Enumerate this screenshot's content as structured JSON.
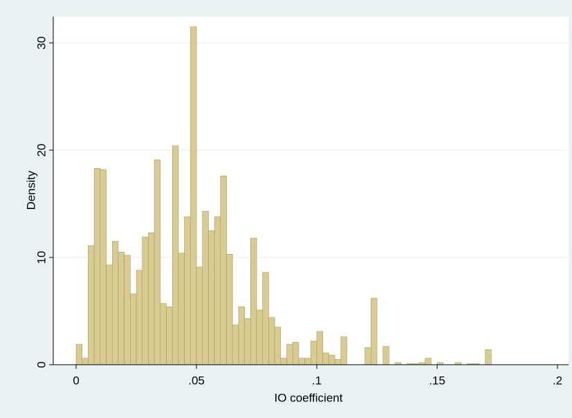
{
  "chart_data": {
    "type": "histogram",
    "xlabel": "IO coefficient",
    "ylabel": "Density",
    "bins": [
      0,
      0.0025,
      0.005,
      0.0075,
      0.01,
      0.0125,
      0.015,
      0.0175,
      0.02,
      0.0225,
      0.025,
      0.0275,
      0.03,
      0.0325,
      0.035,
      0.0375,
      0.04,
      0.0425,
      0.045,
      0.0475,
      0.05,
      0.0525,
      0.055,
      0.0575,
      0.06,
      0.0625,
      0.065,
      0.0675,
      0.07,
      0.0725,
      0.075,
      0.0775,
      0.08,
      0.0825,
      0.085,
      0.0875,
      0.09,
      0.0925,
      0.095,
      0.0975,
      0.1,
      0.1025,
      0.105,
      0.1075,
      0.11,
      0.1125,
      0.115,
      0.1175,
      0.12,
      0.1225,
      0.125,
      0.1275,
      0.13,
      0.1325,
      0.135,
      0.1375,
      0.14,
      0.1425,
      0.145,
      0.1475,
      0.15,
      0.1525,
      0.155,
      0.1575,
      0.16,
      0.1625,
      0.165,
      0.1675,
      0.17,
      0.1725
    ],
    "values": [
      1.9,
      0.6,
      11.1,
      18.3,
      18.2,
      9.3,
      11.5,
      10.5,
      10.2,
      6.6,
      8.8,
      11.9,
      12.3,
      19.1,
      5.7,
      5.4,
      20.4,
      10.4,
      13.8,
      31.5,
      9.1,
      14.3,
      12.5,
      13.8,
      17.6,
      10.3,
      3.7,
      5.4,
      4.3,
      11.8,
      5.1,
      8.6,
      4.4,
      3.5,
      0.6,
      1.9,
      2.1,
      0.6,
      0.6,
      2.2,
      3.1,
      1.1,
      0.9,
      0.5,
      2.6,
      0,
      0,
      0,
      1.6,
      6.2,
      0,
      1.7,
      0,
      0.2,
      0,
      0.1,
      0.1,
      0.2,
      0.6,
      0,
      0.2,
      0,
      0,
      0.2,
      0,
      0.1,
      0.1,
      0,
      1.4
    ],
    "color": "#d8cc93",
    "edgecolor": "#a99b5c",
    "xlim": [
      -0.0095,
      0.2046
    ],
    "ylim": [
      0,
      32.45
    ],
    "xticks": [
      {
        "value": 0,
        "label": "0"
      },
      {
        "value": 0.05,
        "label": ".05"
      },
      {
        "value": 0.1,
        "label": ".1"
      },
      {
        "value": 0.15,
        "label": ".15"
      },
      {
        "value": 0.2,
        "label": ".2"
      }
    ],
    "yticks": [
      0,
      10,
      20,
      30
    ],
    "grid": true
  }
}
